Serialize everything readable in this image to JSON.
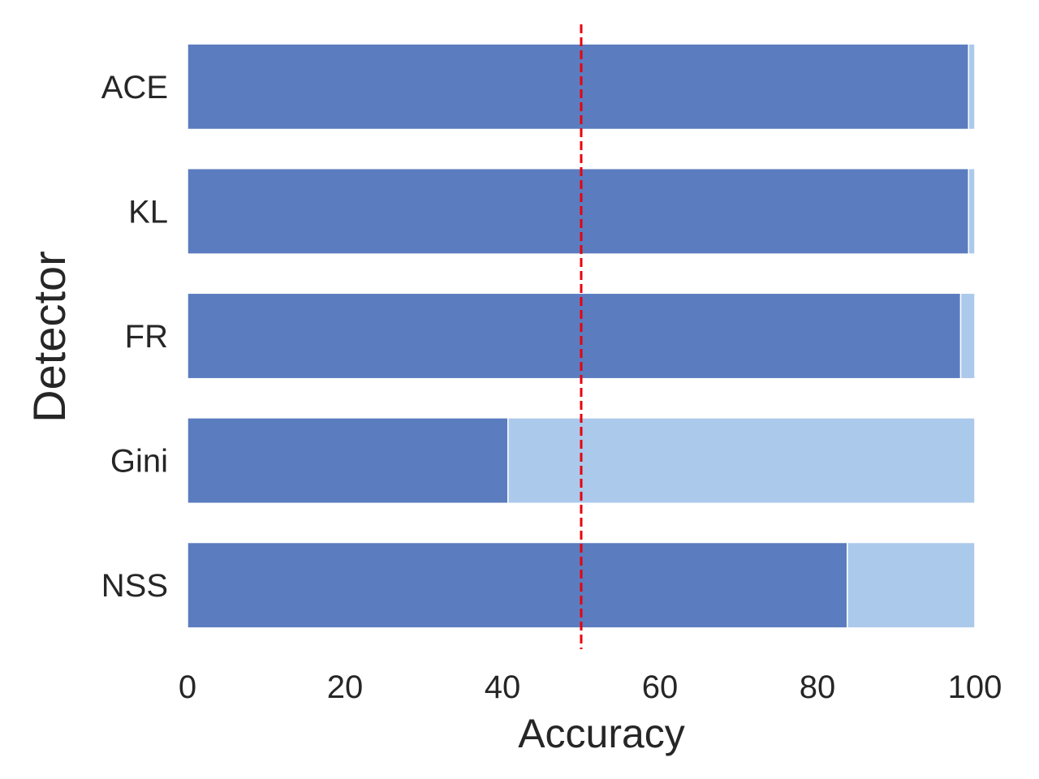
{
  "chart_data": {
    "type": "bar",
    "orientation": "horizontal",
    "stacked": true,
    "categories": [
      "ACE",
      "KL",
      "FR",
      "Gini",
      "NSS"
    ],
    "series": [
      {
        "values": [
          99.2,
          99.2,
          98.2,
          40.7,
          83.8
        ],
        "color": "#5b7dbf"
      },
      {
        "values": [
          0.8,
          0.8,
          1.8,
          59.3,
          16.2
        ],
        "color": "#abc9eb"
      }
    ],
    "xlabel": "Accuracy",
    "ylabel": "Detector",
    "xlim": [
      0,
      100
    ],
    "xticks": [
      0,
      20,
      40,
      60,
      80,
      100
    ],
    "reference_line": {
      "x": 50,
      "style": "dashed",
      "color": "#e8000b"
    },
    "grid": false,
    "legend": "none"
  }
}
